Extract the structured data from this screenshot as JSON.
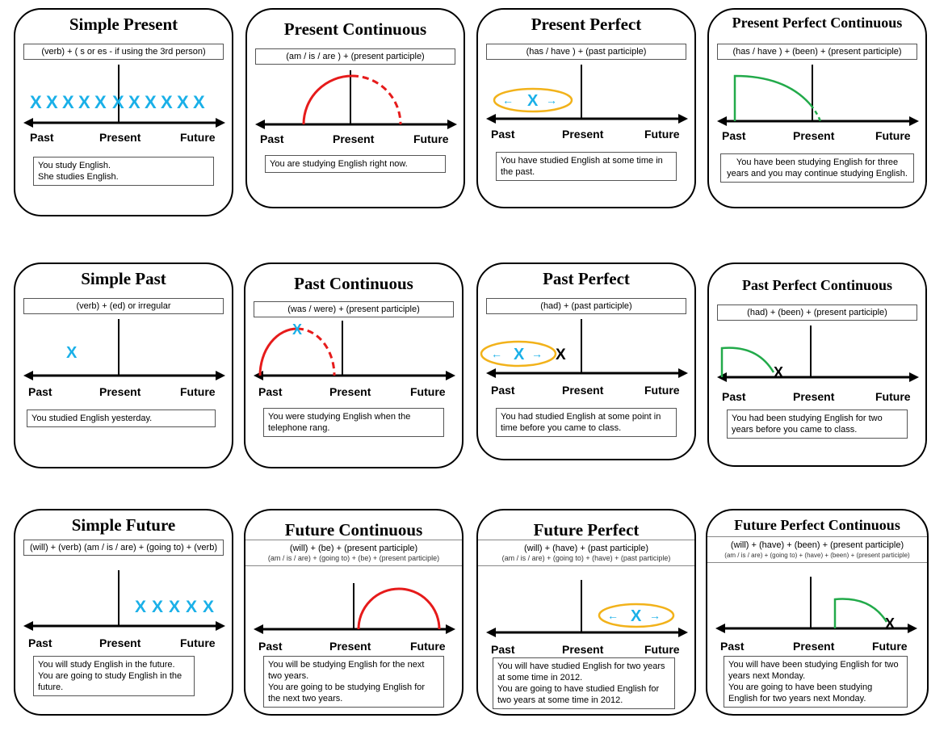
{
  "labels": {
    "past": "Past",
    "present": "Present",
    "future": "Future",
    "x": "X"
  },
  "colors": {
    "blue": "#1ab0e8",
    "red": "#e61b1b",
    "green": "#22aa4a",
    "orange": "#f2b21a"
  },
  "cards": [
    {
      "title": "Simple Present",
      "formula": "(verb) + ( s or es - if using the 3rd person)",
      "example": [
        "You study English.",
        "She studies English."
      ]
    },
    {
      "title": "Present Continuous",
      "formula": "(am / is / are ) + (present participle)",
      "example": [
        "You are studying English right now."
      ]
    },
    {
      "title": "Present Perfect",
      "formula": "(has / have ) + (past participle)",
      "example": [
        "You have studied English at some time in the past."
      ]
    },
    {
      "title": "Present Perfect Continuous",
      "formula": "(has / have ) + (been) + (present participle)",
      "example": [
        "You have been studying English for three years and you may continue studying English."
      ]
    },
    {
      "title": "Simple Past",
      "formula": "(verb) + (ed)  or  irregular",
      "example": [
        "You studied English yesterday."
      ]
    },
    {
      "title": "Past Continuous",
      "formula": "(was / were) + (present participle)",
      "example": [
        "You were studying English when the telephone rang."
      ]
    },
    {
      "title": "Past Perfect",
      "formula": "(had) + (past participle)",
      "example": [
        "You had studied English at some point in time before you came to class."
      ]
    },
    {
      "title": "Past Perfect Continuous",
      "formula": "(had) + (been) + (present participle)",
      "example": [
        "You had been studying English for two years before you came to class."
      ]
    },
    {
      "title": "Simple Future",
      "formula": "(will) + (verb)",
      "formula2": "(am / is / are) + (going to) + (verb)",
      "example": [
        "You will study English in the future.",
        "You are going to study English in the future."
      ]
    },
    {
      "title": "Future Continuous",
      "formula": "(will) + (be) + (present participle)",
      "formula2": "(am / is / are) + (going to) + (be) + (present  participle)",
      "example": [
        "You will be studying English for the next two years.",
        "You are going to be studying English for the next two years."
      ]
    },
    {
      "title": "Future Perfect",
      "formula": "(will) + (have) + (past participle)",
      "formula2": "(am / is / are) + (going to) + (have) + (past participle)",
      "example": [
        "You will have studied English for two years at some time in 2012.",
        "You are going to have studied English for two years at some time in 2012."
      ]
    },
    {
      "title": "Future Perfect Continuous",
      "formula": "(will) + (have) + (been) + (present participle)",
      "formula2": "(am / is / are) + (going to) + (have) + (been) + (present participle)",
      "example": [
        "You will have been studying English for two years next Monday.",
        "You are going to have been studying English for two years next Monday."
      ]
    }
  ]
}
